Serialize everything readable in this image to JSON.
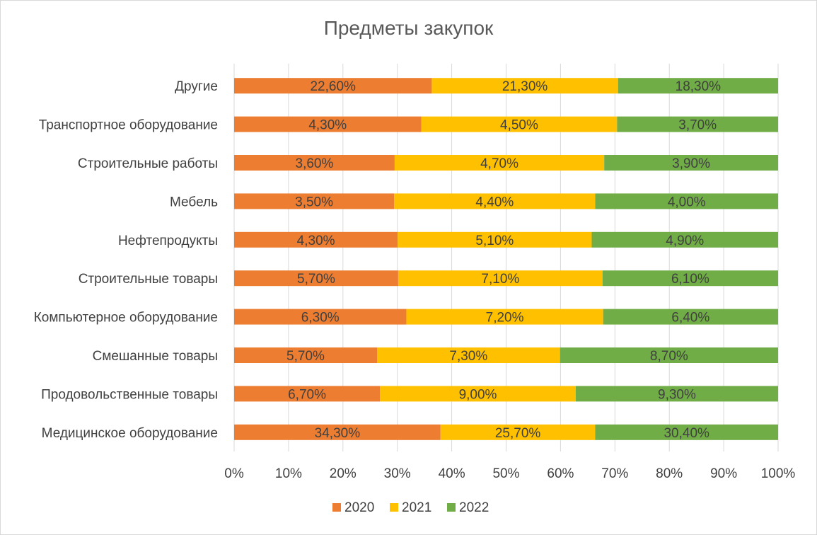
{
  "chart_data": {
    "type": "bar",
    "orientation": "horizontal",
    "stacking": "percent",
    "title": "Предметы закупок",
    "categories": [
      "Медицинское оборудование",
      "Продовольственные товары",
      "Смешанные товары",
      "Компьютерное оборудование",
      "Строительные товары",
      "Нефтепродукты",
      "Мебель",
      "Строительные работы",
      "Транспортное оборудование",
      "Другие"
    ],
    "series": [
      {
        "name": "2020",
        "color": "#ED7D31",
        "values": [
          34.3,
          6.7,
          5.7,
          6.3,
          5.7,
          4.3,
          3.5,
          3.6,
          4.3,
          22.6
        ],
        "labels": [
          "34,30%",
          "6,70%",
          "5,70%",
          "6,30%",
          "5,70%",
          "4,30%",
          "3,50%",
          "3,60%",
          "4,30%",
          "22,60%"
        ]
      },
      {
        "name": "2021",
        "color": "#FFC000",
        "values": [
          25.7,
          9.0,
          7.3,
          7.2,
          7.1,
          5.1,
          4.4,
          4.7,
          4.5,
          21.3
        ],
        "labels": [
          "25,70%",
          "9,00%",
          "7,30%",
          "7,20%",
          "7,10%",
          "5,10%",
          "4,40%",
          "4,70%",
          "4,50%",
          "21,30%"
        ]
      },
      {
        "name": "2022",
        "color": "#70AD47",
        "values": [
          30.4,
          9.3,
          8.7,
          6.4,
          6.1,
          4.9,
          4.0,
          3.9,
          3.7,
          18.3
        ],
        "labels": [
          "30,40%",
          "9,30%",
          "8,70%",
          "6,40%",
          "6,10%",
          "4,90%",
          "4,00%",
          "3,90%",
          "3,70%",
          "18,30%"
        ]
      }
    ],
    "xlim": [
      0,
      100
    ],
    "x_ticks": [
      "0%",
      "10%",
      "20%",
      "30%",
      "40%",
      "50%",
      "60%",
      "70%",
      "80%",
      "90%",
      "100%"
    ],
    "grid": true,
    "legend_position": "bottom"
  }
}
